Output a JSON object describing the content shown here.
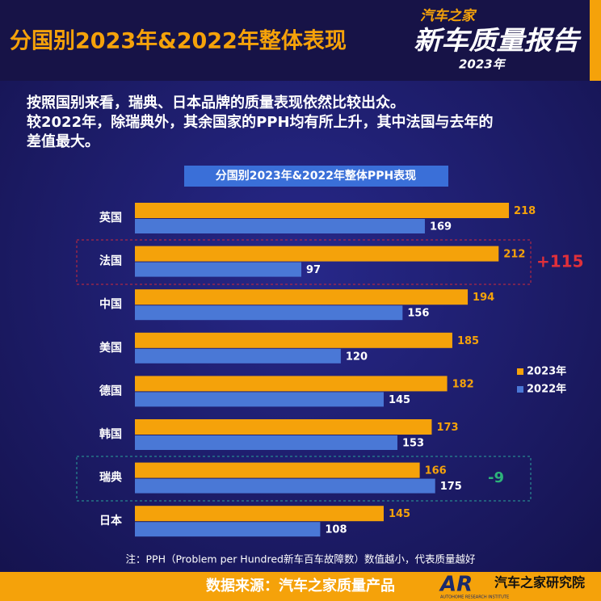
{
  "header": {
    "title": "分国别2023年&2022年整体表现",
    "logo_top": "汽车之家",
    "logo_main": "新车质量报告",
    "logo_year": "2023年"
  },
  "intro": [
    "按照国别来看，瑞典、日本品牌的质量表现依然比较出众。",
    "较2022年，除瑞典外，其余国家的PPH均有所上升，其中法国与去年的",
    "差值最大。"
  ],
  "chart_data": {
    "type": "hbar",
    "title": "分国别2023年&2022年整体PPH表现",
    "categories": [
      "英国",
      "法国",
      "中国",
      "美国",
      "德国",
      "韩国",
      "瑞典",
      "日本"
    ],
    "series": [
      {
        "name": "2023年",
        "color": "#f5a20a",
        "values": [
          218,
          212,
          194,
          185,
          182,
          173,
          166,
          145
        ]
      },
      {
        "name": "2022年",
        "color": "#4a78d6",
        "values": [
          169,
          97,
          156,
          120,
          145,
          153,
          175,
          108
        ]
      }
    ],
    "xlim": [
      0,
      250
    ],
    "legend": "right",
    "annotations": [
      "+115",
      "-9"
    ]
  },
  "note": "注：PPH（Problem per Hundred新车百车故障数）数值越小，代表质量越好",
  "footer": {
    "source": "数据来源：汽车之家质量产品",
    "brand_mark": "AR",
    "brand": "汽车之家研究院",
    "brand_en": "AUTOHOME RESEARCH INSTITUTE"
  }
}
